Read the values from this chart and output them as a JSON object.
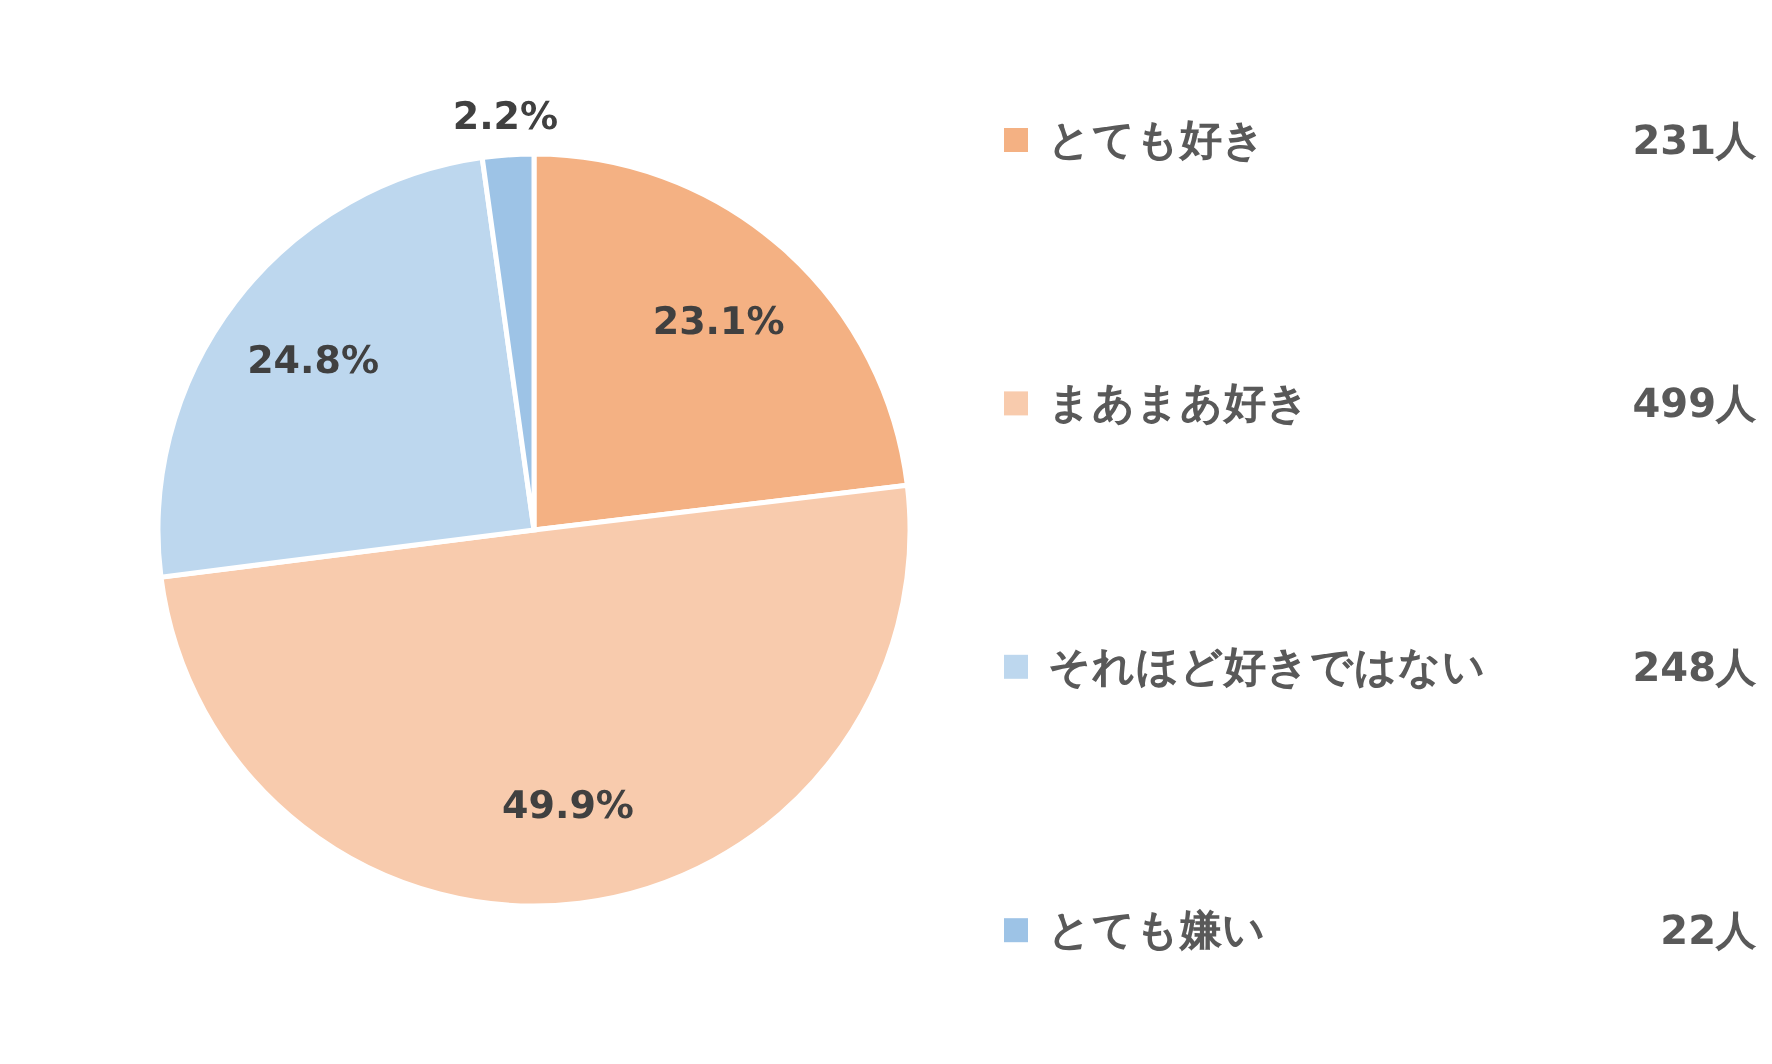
{
  "chart_data": {
    "type": "pie",
    "categories": [
      "とても好き",
      "まあまあ好き",
      "それほど好きではない",
      "とても嫌い"
    ],
    "values": [
      23.1,
      49.9,
      24.8,
      2.2
    ],
    "value_labels": [
      "23.1%",
      "49.9%",
      "24.8%",
      "2.2%"
    ],
    "colors": [
      "#f4b183",
      "#f8cbad",
      "#bdd7ee",
      "#9dc3e6"
    ],
    "legend": "right",
    "annotations": [
      "231人",
      "499人",
      "248人",
      "22人"
    ]
  }
}
